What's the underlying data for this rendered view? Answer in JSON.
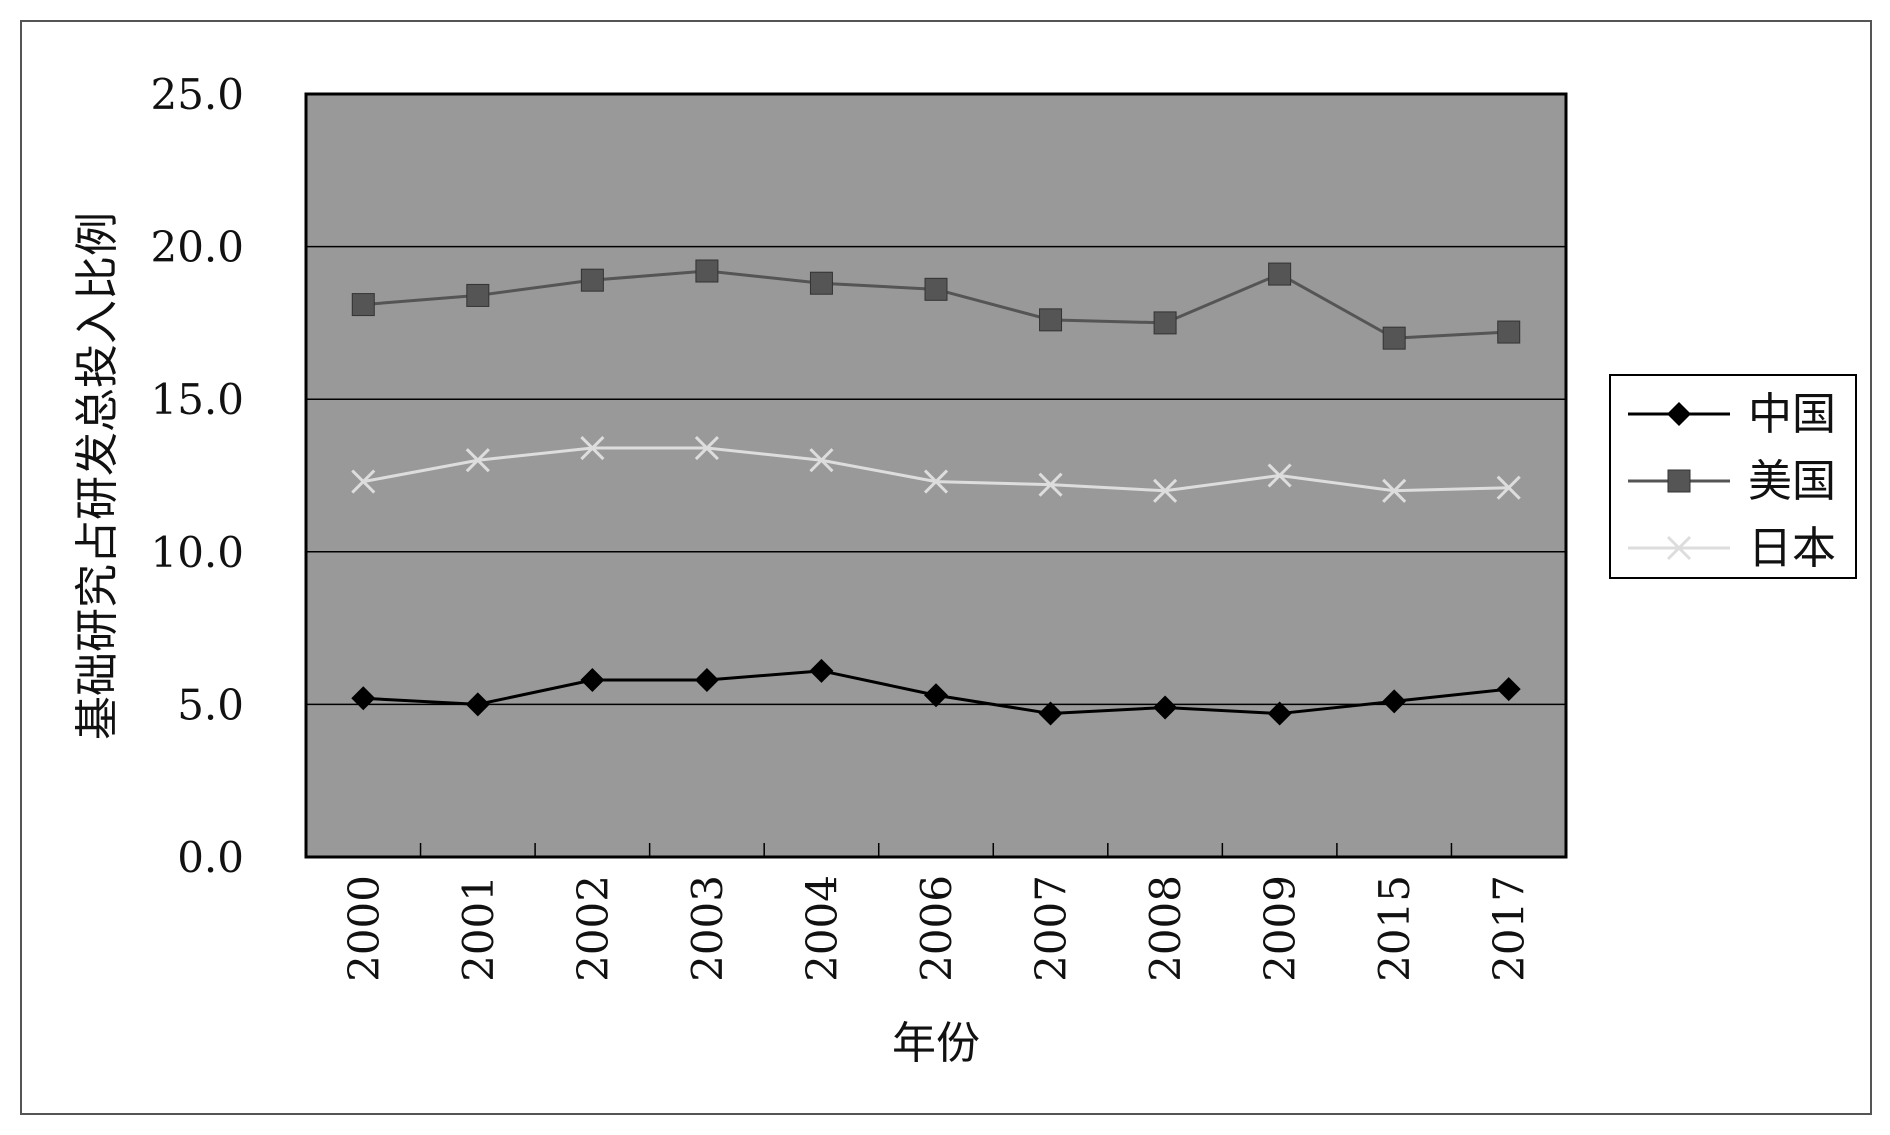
{
  "chart_data": {
    "type": "line",
    "title": "",
    "xlabel": "年份",
    "ylabel": "基础研究占研发总投入比例",
    "categories": [
      "2000",
      "2001",
      "2002",
      "2003",
      "2004",
      "2006",
      "2007",
      "2008",
      "2009",
      "2015",
      "2017"
    ],
    "ylim": [
      0,
      25
    ],
    "yticks": [
      "0.0",
      "5.0",
      "10.0",
      "15.0",
      "20.0",
      "25.0"
    ],
    "ytick_values": [
      0,
      5,
      10,
      15,
      20,
      25
    ],
    "grid": "horizontal",
    "plot_background": "#999999",
    "legend_position": "right",
    "series": [
      {
        "name": "中国",
        "color": "#000000",
        "marker": "diamond",
        "values": [
          5.2,
          5.0,
          5.8,
          5.8,
          6.1,
          5.3,
          4.7,
          4.9,
          4.7,
          5.1,
          5.5
        ]
      },
      {
        "name": "美国",
        "color": "#555555",
        "marker": "square",
        "values": [
          18.1,
          18.4,
          18.9,
          19.2,
          18.8,
          18.6,
          17.6,
          17.5,
          19.1,
          17.0,
          17.2
        ]
      },
      {
        "name": "日本",
        "color": "#dddddd",
        "marker": "x",
        "values": [
          12.3,
          13.0,
          13.4,
          13.4,
          13.0,
          12.3,
          12.2,
          12.0,
          12.5,
          12.0,
          12.1
        ]
      }
    ]
  }
}
